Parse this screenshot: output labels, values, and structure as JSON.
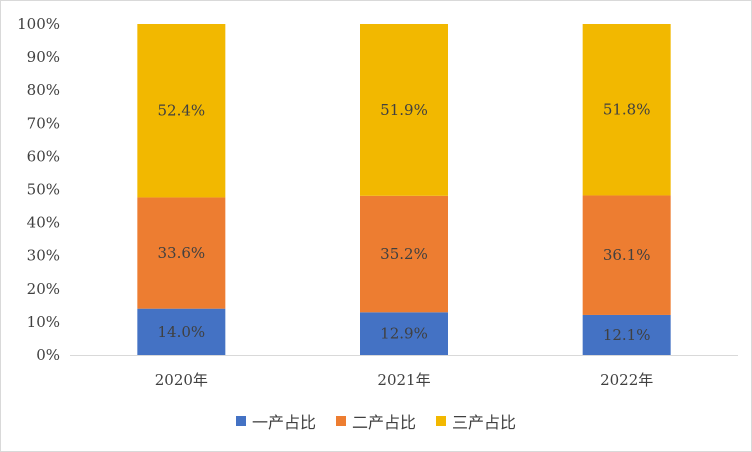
{
  "chart_data": {
    "type": "bar",
    "stacked": "percent",
    "categories": [
      "2020年",
      "2021年",
      "2022年"
    ],
    "series": [
      {
        "name": "一产占比",
        "color": "#4472C4",
        "values": [
          14.0,
          12.9,
          12.1
        ],
        "labels": [
          "14.0%",
          "12.9%",
          "12.1%"
        ]
      },
      {
        "name": "二产占比",
        "color": "#ED7D31",
        "values": [
          33.6,
          35.2,
          36.1
        ],
        "labels": [
          "33.6%",
          "35.2%",
          "36.1%"
        ]
      },
      {
        "name": "三产占比",
        "color": "#F2B800",
        "values": [
          52.4,
          51.9,
          51.8
        ],
        "labels": [
          "52.4%",
          "51.9%",
          "51.8%"
        ]
      }
    ],
    "ylim": [
      0,
      100
    ],
    "yticks": [
      "0%",
      "10%",
      "20%",
      "30%",
      "40%",
      "50%",
      "60%",
      "70%",
      "80%",
      "90%",
      "100%"
    ],
    "legend_position": "bottom",
    "grid": false
  }
}
